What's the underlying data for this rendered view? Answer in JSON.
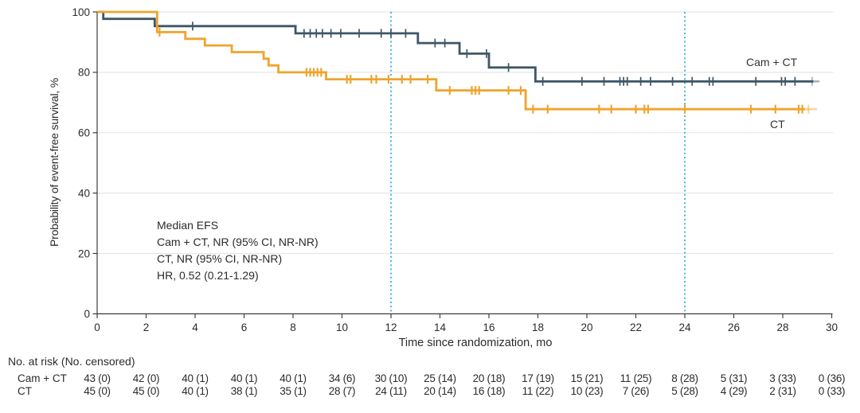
{
  "chart_data": {
    "type": "line",
    "subtype": "kaplan-meier-step",
    "title": "",
    "xlabel": "Time since randomization, mo",
    "ylabel": "Probability of event-free survival, %",
    "xlim": [
      0,
      30
    ],
    "ylim": [
      0,
      100
    ],
    "xticks": [
      0,
      2,
      4,
      6,
      8,
      10,
      12,
      14,
      16,
      18,
      20,
      22,
      24,
      26,
      28,
      30
    ],
    "yticks": [
      0,
      20,
      40,
      60,
      80,
      100
    ],
    "grid": "horizontal",
    "reference_lines_x": [
      12,
      24
    ],
    "annotation": [
      "Median EFS",
      "Cam + CT, NR (95% CI, NR-NR)",
      "CT, NR (95% CI, NR-NR)",
      "HR, 0.52 (0.21-1.29)"
    ],
    "colors": {
      "camct": "#3e5667",
      "ct": "#efa42c",
      "reference": "#45b6e6",
      "grid": "#e7e7e7",
      "axis": "#3c3c3c",
      "text": "#2b2b2b"
    },
    "series": [
      {
        "name": "Cam + CT",
        "color": "#3e5667",
        "tick_width": 1.7,
        "steps": [
          [
            0,
            100
          ],
          [
            0.25,
            100
          ],
          [
            0.25,
            97.7
          ],
          [
            2.35,
            97.7
          ],
          [
            2.35,
            95.3
          ],
          [
            8.1,
            95.3
          ],
          [
            8.1,
            92.9
          ],
          [
            13.1,
            92.9
          ],
          [
            13.1,
            89.7
          ],
          [
            14.8,
            89.7
          ],
          [
            14.8,
            86.2
          ],
          [
            16.0,
            86.2
          ],
          [
            16.0,
            81.6
          ],
          [
            17.9,
            81.6
          ],
          [
            17.9,
            77.0
          ],
          [
            29.25,
            77.0
          ]
        ],
        "fade_steps": [
          [
            29.25,
            77.0
          ],
          [
            29.5,
            77.0
          ]
        ],
        "censors": [
          [
            3.9,
            95.3
          ],
          [
            8.45,
            92.9
          ],
          [
            8.7,
            92.9
          ],
          [
            8.95,
            92.9
          ],
          [
            9.2,
            92.9
          ],
          [
            9.55,
            92.9
          ],
          [
            9.95,
            92.9
          ],
          [
            10.7,
            92.9
          ],
          [
            11.6,
            92.9
          ],
          [
            12.0,
            92.9
          ],
          [
            12.6,
            92.9
          ],
          [
            13.8,
            89.7
          ],
          [
            14.2,
            89.7
          ],
          [
            15.1,
            86.2
          ],
          [
            15.9,
            86.2
          ],
          [
            16.8,
            81.6
          ],
          [
            18.2,
            77.0
          ],
          [
            19.8,
            77.0
          ],
          [
            20.7,
            77.0
          ],
          [
            21.35,
            77.0
          ],
          [
            21.5,
            77.0
          ],
          [
            21.65,
            77.0
          ],
          [
            22.2,
            77.0
          ],
          [
            22.6,
            77.0
          ],
          [
            23.5,
            77.0
          ],
          [
            24.3,
            77.0
          ],
          [
            25.0,
            77.0
          ],
          [
            25.15,
            77.0
          ],
          [
            26.9,
            77.0
          ],
          [
            27.95,
            77.0
          ],
          [
            28.1,
            77.0
          ],
          [
            28.5,
            77.0
          ]
        ],
        "censors_light": [
          [
            29.2,
            77.0
          ]
        ]
      },
      {
        "name": "CT",
        "color": "#efa42c",
        "tick_width": 2.2,
        "steps": [
          [
            0,
            100
          ],
          [
            2.45,
            100
          ],
          [
            2.45,
            93.3
          ],
          [
            3.6,
            93.3
          ],
          [
            3.6,
            91.1
          ],
          [
            4.4,
            91.1
          ],
          [
            4.4,
            88.9
          ],
          [
            5.5,
            88.9
          ],
          [
            5.5,
            86.7
          ],
          [
            6.8,
            86.7
          ],
          [
            6.8,
            84.5
          ],
          [
            7.0,
            84.5
          ],
          [
            7.0,
            82.3
          ],
          [
            7.4,
            82.3
          ],
          [
            7.4,
            80.0
          ],
          [
            9.35,
            80.0
          ],
          [
            9.35,
            77.7
          ],
          [
            13.85,
            77.7
          ],
          [
            13.85,
            74.0
          ],
          [
            17.5,
            74.0
          ],
          [
            17.5,
            67.8
          ],
          [
            28.9,
            67.8
          ]
        ],
        "fade_steps": [
          [
            28.9,
            67.8
          ],
          [
            29.4,
            67.8
          ]
        ],
        "censors": [
          [
            2.55,
            93.3
          ],
          [
            8.55,
            80.0
          ],
          [
            8.7,
            80.0
          ],
          [
            8.85,
            80.0
          ],
          [
            9.0,
            80.0
          ],
          [
            9.15,
            80.0
          ],
          [
            10.2,
            77.7
          ],
          [
            10.35,
            77.7
          ],
          [
            11.2,
            77.7
          ],
          [
            11.4,
            77.7
          ],
          [
            11.9,
            77.7
          ],
          [
            12.45,
            77.7
          ],
          [
            12.8,
            77.7
          ],
          [
            13.5,
            77.7
          ],
          [
            14.4,
            74.0
          ],
          [
            15.3,
            74.0
          ],
          [
            15.45,
            74.0
          ],
          [
            15.6,
            74.0
          ],
          [
            16.8,
            74.0
          ],
          [
            17.3,
            74.0
          ],
          [
            17.8,
            67.8
          ],
          [
            18.4,
            67.8
          ],
          [
            20.5,
            67.8
          ],
          [
            21.0,
            67.8
          ],
          [
            22.0,
            67.8
          ],
          [
            22.35,
            67.8
          ],
          [
            22.5,
            67.8
          ],
          [
            24.0,
            67.8
          ],
          [
            26.7,
            67.8
          ],
          [
            27.7,
            67.8
          ],
          [
            28.65,
            67.8
          ],
          [
            28.8,
            67.8
          ]
        ],
        "censors_light": [
          [
            29.05,
            67.8
          ]
        ]
      }
    ],
    "risk_table": {
      "header": "No. at risk (No. censored)",
      "columns_months": [
        0,
        2,
        4,
        6,
        8,
        10,
        12,
        14,
        16,
        18,
        20,
        22,
        24,
        26,
        28,
        30
      ],
      "rows": [
        {
          "label": "Cam + CT",
          "values": [
            "43 (0)",
            "42 (0)",
            "40 (1)",
            "40 (1)",
            "40 (1)",
            "34 (6)",
            "30 (10)",
            "25 (14)",
            "20 (18)",
            "17 (19)",
            "15 (21)",
            "11 (25)",
            "8 (28)",
            "5 (31)",
            "3 (33)",
            "0 (36)"
          ]
        },
        {
          "label": "CT",
          "values": [
            "45 (0)",
            "45 (0)",
            "40 (1)",
            "38 (1)",
            "35 (1)",
            "28 (7)",
            "24 (11)",
            "20 (14)",
            "16 (18)",
            "11 (22)",
            "10 (23)",
            "7 (26)",
            "5 (28)",
            "4 (29)",
            "2 (31)",
            "0 (33)"
          ]
        }
      ]
    }
  }
}
